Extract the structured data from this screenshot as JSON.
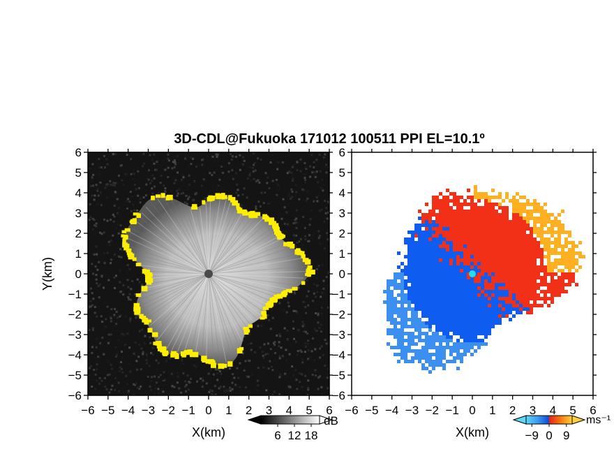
{
  "title": "3D-CDL@Fukuoka 171012 100511 PPI EL=10.1º",
  "xaxis_label": "X(km)",
  "yaxis_label": "Y(km)",
  "colors": {
    "background": "#ffffff",
    "snr_dark": "#141414",
    "snr_clutter": "#ffee00",
    "velocity_negative": "#0f5cf0",
    "velocity_positive": "#f23018",
    "velocity_far": "#ffb020",
    "radar_site": "#22e0e8"
  },
  "chart_data": [
    {
      "type": "heatmap",
      "panel": "left",
      "description_quantity": "SNR",
      "x_range": [
        -6,
        6
      ],
      "y_range": [
        -6,
        6
      ],
      "x_ticks": [
        -6,
        -5,
        -4,
        -3,
        -2,
        -1,
        0,
        1,
        2,
        3,
        4,
        5,
        6
      ],
      "y_ticks": [
        -6,
        -5,
        -4,
        -3,
        -2,
        -1,
        0,
        1,
        2,
        3,
        4,
        5,
        6
      ],
      "data_range_km": 4.0,
      "colorbar": {
        "unit": "dB",
        "ticks": [
          6,
          12,
          18
        ],
        "range": [
          0,
          21
        ]
      }
    },
    {
      "type": "heatmap",
      "panel": "right",
      "description_quantity": "radial velocity",
      "x_range": [
        -6,
        6
      ],
      "y_range": [
        -6,
        6
      ],
      "x_ticks": [
        -6,
        -5,
        -4,
        -3,
        -2,
        -1,
        0,
        1,
        2,
        3,
        4,
        5,
        6
      ],
      "y_ticks": [
        -6,
        -5,
        -4,
        -3,
        -2,
        -1,
        0,
        1,
        2,
        3,
        4,
        5,
        6
      ],
      "colorbar": {
        "unit": "ms⁻¹",
        "ticks": [
          -9,
          0,
          9
        ],
        "range": [
          -12,
          12
        ]
      }
    }
  ]
}
